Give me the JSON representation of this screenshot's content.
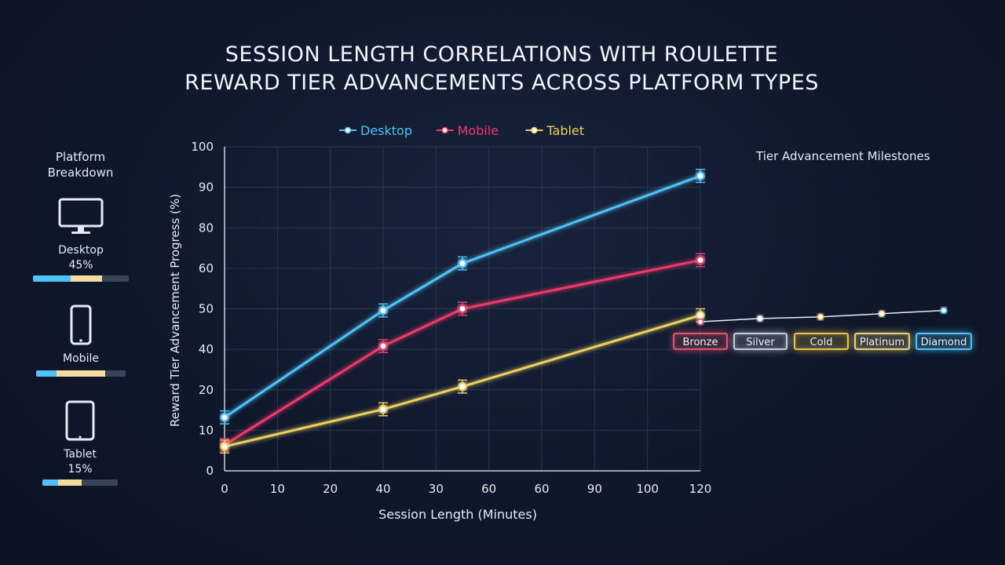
{
  "title_lines": [
    "SESSION LENGTH CORRELATIONS WITH ROULETTE",
    "REWARD TIER ADVANCEMENTS ACROSS PLATFORM TYPES"
  ],
  "sidebar": {
    "title": "Platform Breakdown",
    "platforms": [
      {
        "label": "Desktop",
        "percent_text": "45%",
        "icon": "monitor-icon",
        "share": 45
      },
      {
        "label": "Mobile",
        "percent_text": "",
        "icon": "smartphone-icon"
      },
      {
        "label": "Tablet",
        "percent_text": "15%",
        "icon": "tablet-icon",
        "share": 15
      }
    ]
  },
  "milestones": {
    "title": "Tier Advancement Milestones",
    "tiers": [
      {
        "label": "Bronze",
        "color": "#e0536e"
      },
      {
        "label": "Silver",
        "color": "#c8ccd8"
      },
      {
        "label": "Cold",
        "color": "#e8c24a"
      },
      {
        "label": "Platinum",
        "color": "#e8d27a"
      },
      {
        "label": "Diamond",
        "color": "#4fc3f7"
      }
    ]
  },
  "chart_data": {
    "type": "line",
    "xlabel": "Session Length (Minutes)",
    "ylabel": "Reward Tier Advancement Progress (%)",
    "x_tick_labels": [
      "0",
      "10",
      "20",
      "40",
      "30",
      "60",
      "60",
      "90",
      "100",
      "120"
    ],
    "y_ticks": [
      0,
      10,
      20,
      40,
      50,
      60,
      80,
      90,
      100
    ],
    "ylim": [
      0,
      100
    ],
    "grid": true,
    "legend_position": "top-center",
    "series": [
      {
        "name": "Desktop",
        "color": "#4fc3f7",
        "x": [
          0,
          40,
          60,
          120
        ],
        "y": [
          16.5,
          49.5,
          64,
          91
        ],
        "err": [
          2,
          2,
          2,
          2
        ]
      },
      {
        "name": "Mobile",
        "color": "#f0386b",
        "x": [
          0,
          40,
          60,
          120
        ],
        "y": [
          8,
          38.5,
          50,
          65
        ],
        "err": [
          2,
          2,
          2,
          2
        ]
      },
      {
        "name": "Tablet",
        "color": "#ecd060",
        "x": [
          0,
          40,
          60,
          120
        ],
        "y": [
          7.5,
          19,
          26,
          48
        ],
        "err": [
          2,
          2,
          2,
          2
        ]
      }
    ],
    "milestone_line_y": [
      46,
      47,
      47.5,
      48.5,
      49.5
    ]
  }
}
